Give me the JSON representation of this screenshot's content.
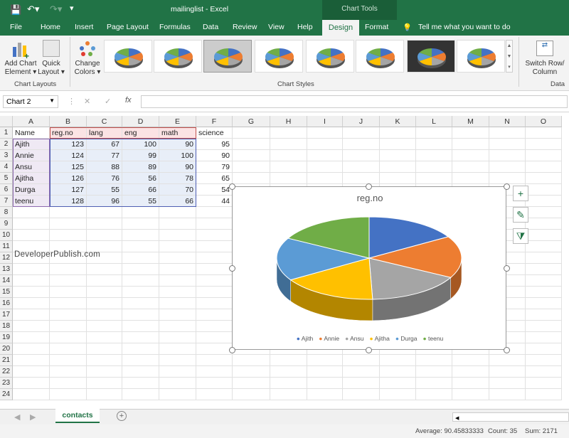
{
  "title": "mailinglist - Excel",
  "context_tab": "Chart Tools",
  "tabs": [
    "File",
    "Home",
    "Insert",
    "Page Layout",
    "Formulas",
    "Data",
    "Review",
    "View",
    "Help",
    "Design",
    "Format"
  ],
  "tell_me": "Tell me what you want to do",
  "ribbon": {
    "add_chart_element": [
      "Add Chart",
      "Element ▾"
    ],
    "quick_layout": [
      "Quick",
      "Layout ▾"
    ],
    "change_colors": [
      "Change",
      "Colors ▾"
    ],
    "switch_row_col": [
      "Switch Row/",
      "Column"
    ],
    "groups": {
      "chart_layouts": "Chart Layouts",
      "chart_styles": "Chart Styles",
      "data": "Data"
    }
  },
  "name_box": "Chart 2",
  "formula_icons": {
    "cancel": "✕",
    "enter": "✓",
    "fx": "fx"
  },
  "columns": [
    "A",
    "B",
    "C",
    "D",
    "E",
    "F",
    "G",
    "H",
    "I",
    "J",
    "K",
    "L",
    "M",
    "N",
    "O"
  ],
  "rows": [
    [
      "Name",
      "reg.no",
      "lang",
      "eng",
      "math",
      "science"
    ],
    [
      "Ajith",
      123,
      67,
      100,
      90,
      95
    ],
    [
      "Annie",
      124,
      77,
      99,
      100,
      90
    ],
    [
      "Ansu",
      125,
      88,
      89,
      90,
      79
    ],
    [
      "Ajitha",
      126,
      76,
      56,
      78,
      65
    ],
    [
      "Durga",
      127,
      55,
      66,
      70,
      54
    ],
    [
      "teenu",
      128,
      96,
      55,
      66,
      44
    ]
  ],
  "row_count": 24,
  "watermark": "DeveloperPublish.com",
  "chart_data": {
    "type": "pie",
    "title": "reg.no",
    "categories": [
      "Ajith",
      "Annie",
      "Ansu",
      "Ajitha",
      "Durga",
      "teenu"
    ],
    "values": [
      123,
      124,
      125,
      126,
      127,
      128
    ],
    "colors": [
      "#4472C4",
      "#ED7D31",
      "#A5A5A5",
      "#FFC000",
      "#5B9BD5",
      "#70AD47"
    ],
    "style": "3-D pie",
    "legend": "bottom"
  },
  "chart_buttons": [
    "+",
    "✎",
    "⧩"
  ],
  "sheet_tab": "contacts",
  "status": {
    "average": "Average: 90.45833333",
    "count": "Count: 35",
    "sum": "Sum: 2171"
  }
}
